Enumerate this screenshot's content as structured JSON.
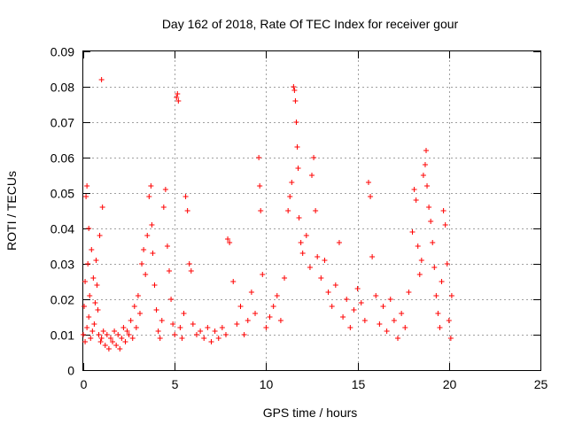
{
  "chart_data": {
    "type": "scatter",
    "title": "Day 162 of 2018, Rate Of TEC Index for receiver gour",
    "xlabel": "GPS time / hours",
    "ylabel": "ROTI / TECUs",
    "xlim": [
      0,
      25
    ],
    "ylim": [
      0,
      0.09
    ],
    "x_ticks": [
      0,
      5,
      10,
      15,
      20,
      25
    ],
    "y_ticks": [
      0,
      0.01,
      0.02,
      0.03,
      0.04,
      0.05,
      0.06,
      0.07,
      0.08,
      0.09
    ],
    "x_tick_labels": [
      "0",
      "5",
      "10",
      "15",
      "20",
      "25"
    ],
    "y_tick_labels": [
      "0",
      "0.01",
      "0.02",
      "0.03",
      "0.04",
      "0.05",
      "0.06",
      "0.07",
      "0.08",
      "0.09"
    ],
    "grid": true,
    "marker": "+",
    "color": "#ff0000",
    "points": [
      [
        0.0,
        0.01
      ],
      [
        0.05,
        0.018
      ],
      [
        0.1,
        0.008
      ],
      [
        0.1,
        0.025
      ],
      [
        0.15,
        0.049
      ],
      [
        0.2,
        0.052
      ],
      [
        0.2,
        0.012
      ],
      [
        0.25,
        0.03
      ],
      [
        0.3,
        0.015
      ],
      [
        0.3,
        0.04
      ],
      [
        0.35,
        0.021
      ],
      [
        0.4,
        0.009
      ],
      [
        0.45,
        0.034
      ],
      [
        0.5,
        0.011
      ],
      [
        0.55,
        0.026
      ],
      [
        0.6,
        0.013
      ],
      [
        0.65,
        0.019
      ],
      [
        0.7,
        0.031
      ],
      [
        0.75,
        0.024
      ],
      [
        0.8,
        0.017
      ],
      [
        0.85,
        0.01
      ],
      [
        0.9,
        0.038
      ],
      [
        0.95,
        0.008
      ],
      [
        1.0,
        0.082
      ],
      [
        1.0,
        0.009
      ],
      [
        1.05,
        0.046
      ],
      [
        1.1,
        0.011
      ],
      [
        1.2,
        0.007
      ],
      [
        1.3,
        0.01
      ],
      [
        1.4,
        0.006
      ],
      [
        1.5,
        0.009
      ],
      [
        1.6,
        0.008
      ],
      [
        1.7,
        0.011
      ],
      [
        1.8,
        0.007
      ],
      [
        1.9,
        0.01
      ],
      [
        2.0,
        0.006
      ],
      [
        2.1,
        0.009
      ],
      [
        2.2,
        0.012
      ],
      [
        2.3,
        0.008
      ],
      [
        2.4,
        0.011
      ],
      [
        2.5,
        0.01
      ],
      [
        2.6,
        0.014
      ],
      [
        2.7,
        0.009
      ],
      [
        2.8,
        0.018
      ],
      [
        2.9,
        0.012
      ],
      [
        3.0,
        0.021
      ],
      [
        3.1,
        0.016
      ],
      [
        3.2,
        0.03
      ],
      [
        3.3,
        0.034
      ],
      [
        3.4,
        0.027
      ],
      [
        3.5,
        0.038
      ],
      [
        3.6,
        0.049
      ],
      [
        3.7,
        0.052
      ],
      [
        3.75,
        0.041
      ],
      [
        3.8,
        0.033
      ],
      [
        3.9,
        0.024
      ],
      [
        4.0,
        0.017
      ],
      [
        4.1,
        0.011
      ],
      [
        4.2,
        0.009
      ],
      [
        4.3,
        0.014
      ],
      [
        4.4,
        0.046
      ],
      [
        4.5,
        0.051
      ],
      [
        4.6,
        0.035
      ],
      [
        4.7,
        0.028
      ],
      [
        4.8,
        0.02
      ],
      [
        4.9,
        0.013
      ],
      [
        5.0,
        0.01
      ],
      [
        5.1,
        0.077
      ],
      [
        5.15,
        0.078
      ],
      [
        5.2,
        0.076
      ],
      [
        5.3,
        0.012
      ],
      [
        5.4,
        0.009
      ],
      [
        5.5,
        0.016
      ],
      [
        5.6,
        0.049
      ],
      [
        5.7,
        0.045
      ],
      [
        5.8,
        0.03
      ],
      [
        5.9,
        0.028
      ],
      [
        6.0,
        0.013
      ],
      [
        6.2,
        0.01
      ],
      [
        6.4,
        0.011
      ],
      [
        6.6,
        0.009
      ],
      [
        6.8,
        0.012
      ],
      [
        7.0,
        0.008
      ],
      [
        7.2,
        0.011
      ],
      [
        7.4,
        0.009
      ],
      [
        7.6,
        0.012
      ],
      [
        7.8,
        0.01
      ],
      [
        7.9,
        0.037
      ],
      [
        8.0,
        0.036
      ],
      [
        8.2,
        0.025
      ],
      [
        8.4,
        0.013
      ],
      [
        8.6,
        0.018
      ],
      [
        8.8,
        0.01
      ],
      [
        9.0,
        0.014
      ],
      [
        9.2,
        0.022
      ],
      [
        9.4,
        0.016
      ],
      [
        9.6,
        0.06
      ],
      [
        9.65,
        0.052
      ],
      [
        9.7,
        0.045
      ],
      [
        9.8,
        0.027
      ],
      [
        10.0,
        0.012
      ],
      [
        10.2,
        0.015
      ],
      [
        10.4,
        0.018
      ],
      [
        10.6,
        0.021
      ],
      [
        10.8,
        0.014
      ],
      [
        11.0,
        0.026
      ],
      [
        11.2,
        0.045
      ],
      [
        11.3,
        0.049
      ],
      [
        11.4,
        0.053
      ],
      [
        11.5,
        0.08
      ],
      [
        11.55,
        0.079
      ],
      [
        11.6,
        0.076
      ],
      [
        11.65,
        0.07
      ],
      [
        11.7,
        0.063
      ],
      [
        11.75,
        0.057
      ],
      [
        11.8,
        0.043
      ],
      [
        11.9,
        0.036
      ],
      [
        12.0,
        0.033
      ],
      [
        12.2,
        0.038
      ],
      [
        12.4,
        0.029
      ],
      [
        12.5,
        0.055
      ],
      [
        12.6,
        0.06
      ],
      [
        12.7,
        0.045
      ],
      [
        12.8,
        0.032
      ],
      [
        13.0,
        0.026
      ],
      [
        13.2,
        0.031
      ],
      [
        13.4,
        0.022
      ],
      [
        13.6,
        0.018
      ],
      [
        13.8,
        0.024
      ],
      [
        14.0,
        0.036
      ],
      [
        14.2,
        0.015
      ],
      [
        14.4,
        0.02
      ],
      [
        14.6,
        0.012
      ],
      [
        14.8,
        0.017
      ],
      [
        15.0,
        0.023
      ],
      [
        15.2,
        0.019
      ],
      [
        15.4,
        0.014
      ],
      [
        15.6,
        0.053
      ],
      [
        15.7,
        0.049
      ],
      [
        15.8,
        0.032
      ],
      [
        16.0,
        0.021
      ],
      [
        16.2,
        0.013
      ],
      [
        16.4,
        0.018
      ],
      [
        16.6,
        0.011
      ],
      [
        16.8,
        0.02
      ],
      [
        17.0,
        0.014
      ],
      [
        17.2,
        0.009
      ],
      [
        17.4,
        0.016
      ],
      [
        17.6,
        0.012
      ],
      [
        17.8,
        0.022
      ],
      [
        18.0,
        0.039
      ],
      [
        18.1,
        0.051
      ],
      [
        18.2,
        0.048
      ],
      [
        18.3,
        0.035
      ],
      [
        18.4,
        0.027
      ],
      [
        18.5,
        0.031
      ],
      [
        18.6,
        0.055
      ],
      [
        18.7,
        0.058
      ],
      [
        18.75,
        0.062
      ],
      [
        18.8,
        0.052
      ],
      [
        18.9,
        0.046
      ],
      [
        19.0,
        0.042
      ],
      [
        19.1,
        0.036
      ],
      [
        19.2,
        0.029
      ],
      [
        19.3,
        0.021
      ],
      [
        19.4,
        0.016
      ],
      [
        19.5,
        0.012
      ],
      [
        19.6,
        0.025
      ],
      [
        19.7,
        0.045
      ],
      [
        19.8,
        0.041
      ],
      [
        19.9,
        0.03
      ],
      [
        20.0,
        0.014
      ],
      [
        20.1,
        0.009
      ],
      [
        20.15,
        0.021
      ]
    ]
  }
}
